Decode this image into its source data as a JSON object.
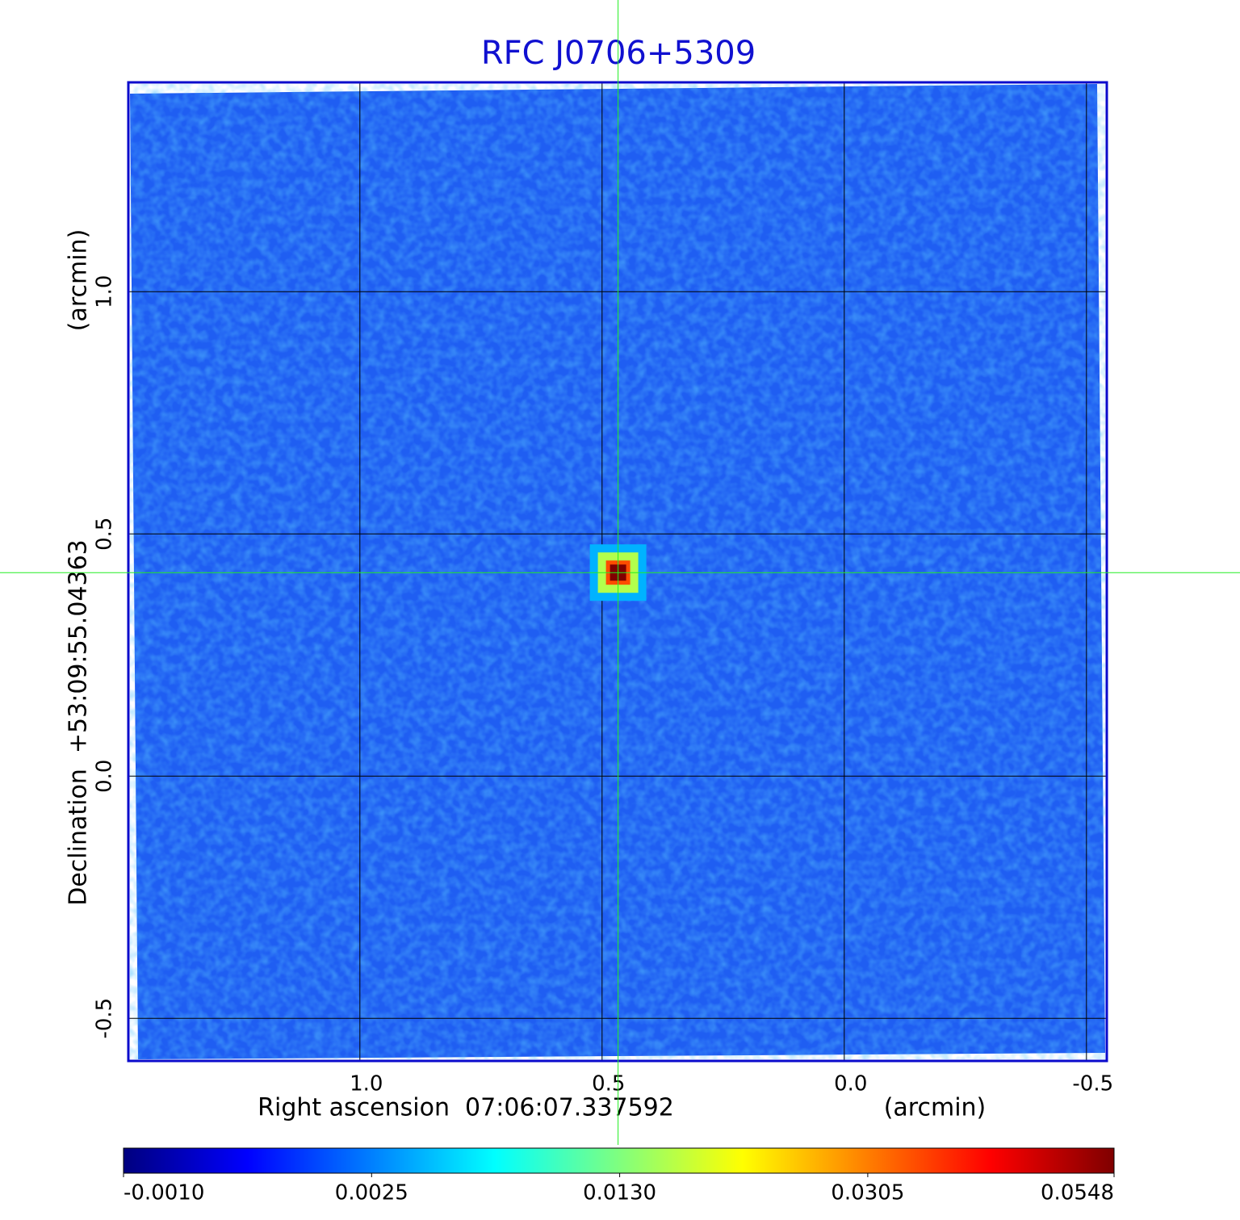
{
  "chart_data": {
    "type": "image",
    "title": "RFC J0706+5309",
    "x_label": "Right ascension  07:06:07.337592",
    "x_unit": "(arcmin)",
    "y_label": "Declination  +53:09:55.04363",
    "y_unit": "(arcmin)",
    "xlim": [
      1.478,
      -0.542
    ],
    "xticks": [
      {
        "value": 1,
        "label": "1.0"
      },
      0.5,
      {
        "value": 0,
        "label": "0.0"
      },
      -0.5
    ],
    "ylim": [
      -0.588,
      1.432
    ],
    "yticks": [
      -0.5,
      {
        "value": 0,
        "label": "0.0"
      },
      0.5,
      {
        "value": 1,
        "label": "1.0"
      }
    ],
    "grid": true,
    "source": {
      "x": 0.467,
      "y": 0.42,
      "peak": 0.0548
    },
    "crosshair": {
      "x": 0.467,
      "y": 0.42
    },
    "colorbar": {
      "clim": [
        -0.001,
        0.0548
      ],
      "scale": "sqrt",
      "ticks": [
        {
          "value": -0.001,
          "label": "-0.0010"
        },
        {
          "value": 0.0025,
          "label": "0.0025"
        },
        {
          "value": 0.013,
          "label": "0.0130"
        },
        {
          "value": 0.0305,
          "label": "0.0305"
        },
        {
          "value": 0.0548,
          "label": "0.0548"
        }
      ],
      "colormap": [
        "#00007f",
        "#0000ff",
        "#007fff",
        "#00ffff",
        "#7fff7f",
        "#ffff00",
        "#ff7f00",
        "#ff0000",
        "#7f0000"
      ]
    }
  }
}
